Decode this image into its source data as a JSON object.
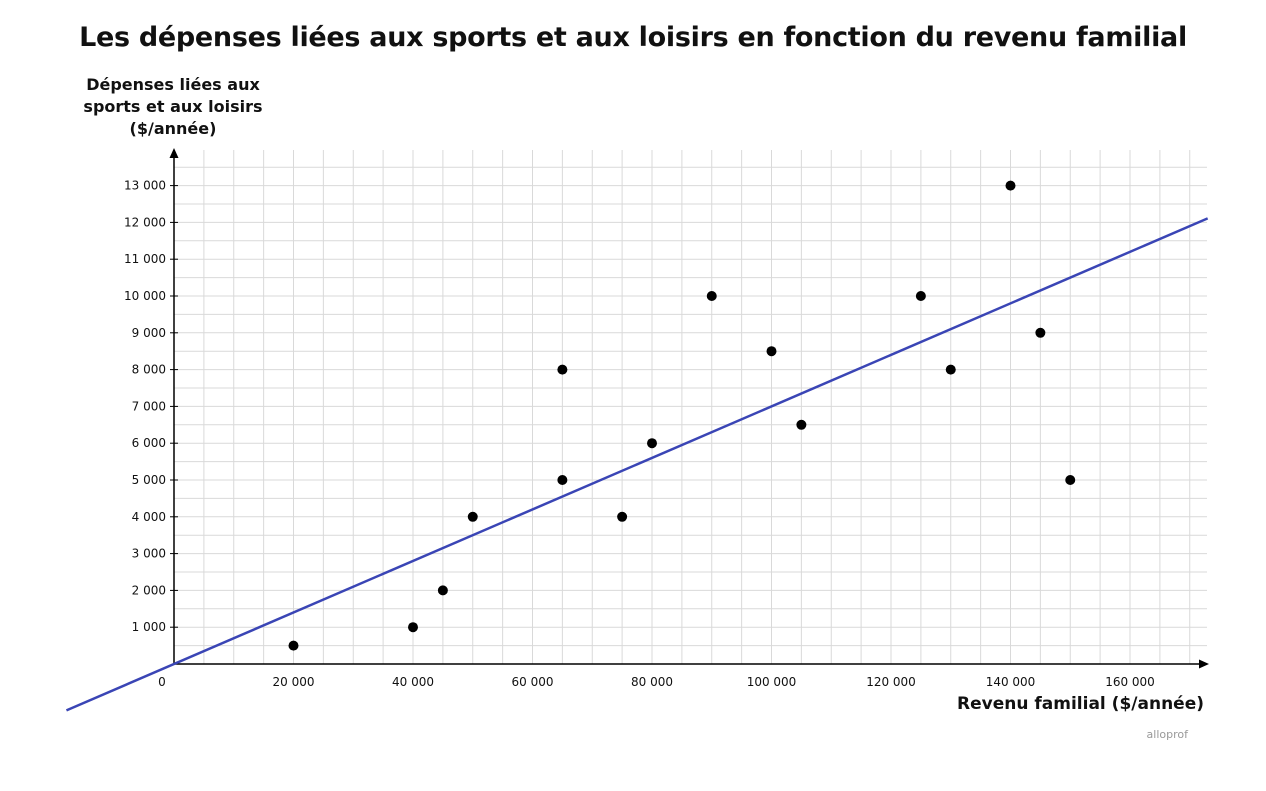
{
  "chart_data": {
    "type": "scatter",
    "title": "Les dépenses liées aux sports et aux loisirs en fonction du revenu familial",
    "xlabel": "Revenu familial ($/année)",
    "ylabel": "Dépenses liées aux sports et aux loisirs ($/année)",
    "xlim": [
      0,
      172500
    ],
    "ylim": [
      0,
      14000
    ],
    "grid": true,
    "x_ticks": [
      0,
      20000,
      40000,
      60000,
      80000,
      100000,
      120000,
      140000,
      160000
    ],
    "x_tick_labels": [
      "0",
      "20 000",
      "40 000",
      "60 000",
      "80 000",
      "100 000",
      "120 000",
      "140 000",
      "160 000"
    ],
    "y_ticks": [
      1000,
      2000,
      3000,
      4000,
      5000,
      6000,
      7000,
      8000,
      9000,
      10000,
      11000,
      12000,
      13000
    ],
    "y_tick_labels": [
      "1 000",
      "2 000",
      "3 000",
      "4 000",
      "5 000",
      "6 000",
      "7 000",
      "8 000",
      "9 000",
      "10 000",
      "11 000",
      "12 000",
      "13 000"
    ],
    "points": [
      {
        "x": 20000,
        "y": 500
      },
      {
        "x": 40000,
        "y": 1000
      },
      {
        "x": 45000,
        "y": 2000
      },
      {
        "x": 50000,
        "y": 4000
      },
      {
        "x": 65000,
        "y": 5000
      },
      {
        "x": 65000,
        "y": 8000
      },
      {
        "x": 75000,
        "y": 4000
      },
      {
        "x": 80000,
        "y": 6000
      },
      {
        "x": 90000,
        "y": 10000
      },
      {
        "x": 100000,
        "y": 8500
      },
      {
        "x": 105000,
        "y": 6500
      },
      {
        "x": 125000,
        "y": 10000
      },
      {
        "x": 130000,
        "y": 8000
      },
      {
        "x": 140000,
        "y": 13000
      },
      {
        "x": 145000,
        "y": 9000
      },
      {
        "x": 150000,
        "y": 5000
      }
    ],
    "trend_line": {
      "slope": 0.07,
      "intercept": 0,
      "color": "#3a45b5"
    },
    "colors": {
      "points": "#000000",
      "grid": "#d9d9d9",
      "axes": "#000000"
    }
  },
  "brand": "alloprof"
}
